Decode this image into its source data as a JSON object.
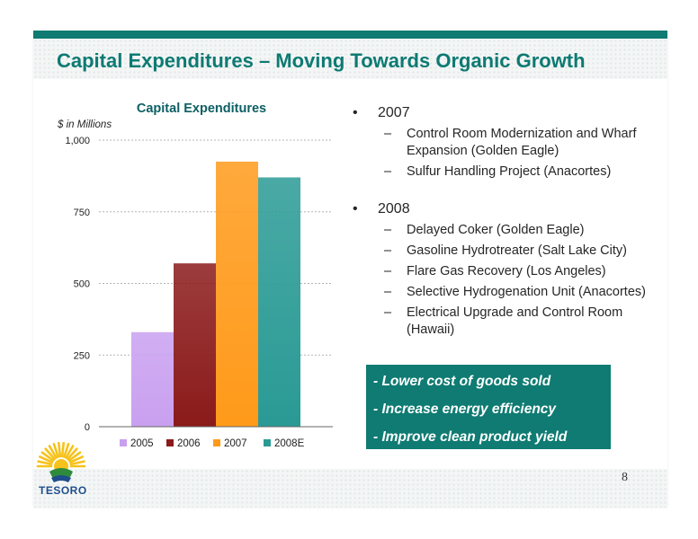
{
  "slide": {
    "title": "Capital Expenditures – Moving Towards Organic Growth",
    "page_number": "8",
    "logo_text": "TESORO"
  },
  "chart_data": {
    "type": "bar",
    "title": "Capital Expenditures",
    "ylabel": "$ in Millions",
    "xlabel": "",
    "categories": [
      "2005",
      "2006",
      "2007",
      "2008E"
    ],
    "values": [
      330,
      570,
      925,
      870
    ],
    "colors": [
      "#c9a0f0",
      "#8b1a1a",
      "#ff9a1a",
      "#2a9a95"
    ],
    "ylim": [
      0,
      1000
    ],
    "yticks": [
      0,
      250,
      500,
      750,
      1000
    ],
    "ytick_labels": [
      "0",
      "250",
      "500",
      "750",
      "1,000"
    ],
    "grid": true,
    "legend": [
      "2005",
      "2006",
      "2007",
      "2008E"
    ],
    "legend_position": "bottom"
  },
  "bullets": [
    {
      "year": "2007",
      "items": [
        "Control Room Modernization and Wharf Expansion (Golden Eagle)",
        "Sulfur Handling Project (Anacortes)"
      ]
    },
    {
      "year": "2008",
      "items": [
        "Delayed Coker (Golden Eagle)",
        "Gasoline Hydrotreater (Salt Lake City)",
        "Flare Gas Recovery (Los Angeles)",
        "Selective Hydrogenation Unit (Anacortes)",
        "Electrical Upgrade and Control Room (Hawaii)"
      ]
    }
  ],
  "callout": {
    "lines": [
      "- Lower cost of goods sold",
      "- Increase energy efficiency",
      "- Improve clean product yield"
    ]
  },
  "colors": {
    "accent": "#0f7b72",
    "title": "#0d7a73"
  }
}
